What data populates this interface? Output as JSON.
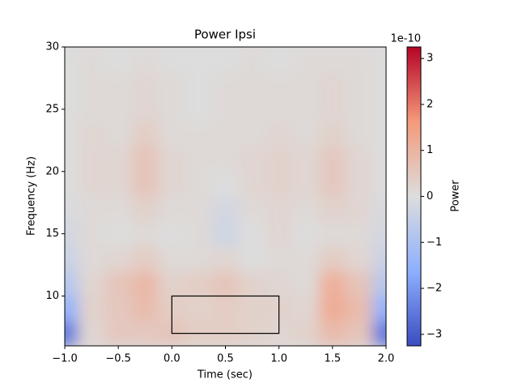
{
  "chart_data": {
    "type": "heatmap",
    "title": "Power Ipsi",
    "x_label": "Time (sec)",
    "y_label": "Frequency (Hz)",
    "colorbar_label": "Power",
    "colorbar_offset": "1e-10",
    "colormap": [
      "#3b4cc0",
      "#8db0fe",
      "#dddddd",
      "#f49a7b",
      "#b40426"
    ],
    "x": [
      -1,
      -0.75,
      -0.5,
      -0.25,
      0,
      0.25,
      0.5,
      0.75,
      1,
      1.25,
      1.5,
      1.75,
      2
    ],
    "y": [
      7,
      9,
      11,
      13,
      15,
      17,
      19,
      21,
      23,
      25,
      27,
      29
    ],
    "z": [
      [
        -2.5,
        0.2,
        0.5,
        0.5,
        0.6,
        0.4,
        0.4,
        0.3,
        0.2,
        0.3,
        0.8,
        0.6,
        -2.5
      ],
      [
        -1.5,
        0.3,
        0.5,
        0.8,
        0.4,
        0.3,
        0.4,
        0.3,
        0.3,
        0.2,
        1.2,
        0.8,
        -1.5
      ],
      [
        -0.8,
        0.2,
        0.6,
        0.9,
        0.3,
        0.4,
        0.6,
        0.3,
        0.2,
        0.1,
        1.1,
        0.6,
        -0.8
      ],
      [
        -0.4,
        0.1,
        0.2,
        0.4,
        0.1,
        0.1,
        0.2,
        0,
        0.1,
        0.1,
        0.4,
        0.2,
        -0.4
      ],
      [
        -0.2,
        0.1,
        0,
        0.1,
        0,
        0.1,
        -0.3,
        0,
        0.2,
        0,
        0.1,
        0.1,
        -0.2
      ],
      [
        -0.1,
        0.1,
        0.1,
        0.3,
        0.1,
        0.1,
        -0.2,
        0.1,
        0.2,
        0.1,
        0.3,
        0.2,
        -0.1
      ],
      [
        0,
        0.2,
        0.2,
        0.6,
        0.2,
        0.1,
        0,
        0.2,
        0.3,
        0.2,
        0.5,
        0.2,
        0
      ],
      [
        0,
        0.2,
        0.2,
        0.6,
        0.2,
        0.1,
        0.1,
        0.2,
        0.3,
        0.2,
        0.5,
        0.2,
        0
      ],
      [
        0,
        0.2,
        0.1,
        0.4,
        0.1,
        0.1,
        0.1,
        0.1,
        0.2,
        0.1,
        0.3,
        0.1,
        0
      ],
      [
        0,
        0.1,
        0.1,
        0.2,
        0.1,
        0,
        0.1,
        0.1,
        0.1,
        0.1,
        0.2,
        0.1,
        0
      ],
      [
        0,
        0.1,
        0.1,
        0.2,
        0.1,
        0,
        0.1,
        0.1,
        0.1,
        0.1,
        0.2,
        0.1,
        0
      ],
      [
        0,
        0.1,
        0,
        0.1,
        0,
        0,
        0,
        0.1,
        0,
        0.1,
        0.1,
        0.1,
        0
      ]
    ],
    "xlim": [
      -1,
      2
    ],
    "ylim": [
      6,
      30
    ],
    "clim": [
      -3.25,
      3.25
    ],
    "xticks": [
      {
        "value": -1,
        "label": "−1.0"
      },
      {
        "value": -0.5,
        "label": "−0.5"
      },
      {
        "value": 0,
        "label": "0.0"
      },
      {
        "value": 0.5,
        "label": "0.5"
      },
      {
        "value": 1,
        "label": "1.0"
      },
      {
        "value": 1.5,
        "label": "1.5"
      },
      {
        "value": 2,
        "label": "2.0"
      }
    ],
    "yticks": [
      10,
      15,
      20,
      25,
      30
    ],
    "cticks": [
      {
        "value": -3,
        "label": "−3"
      },
      {
        "value": -2,
        "label": "−2"
      },
      {
        "value": -1,
        "label": "−1"
      },
      0,
      1,
      2,
      3
    ],
    "rectangle": {
      "x": [
        0,
        1
      ],
      "y": [
        7,
        10
      ]
    }
  }
}
